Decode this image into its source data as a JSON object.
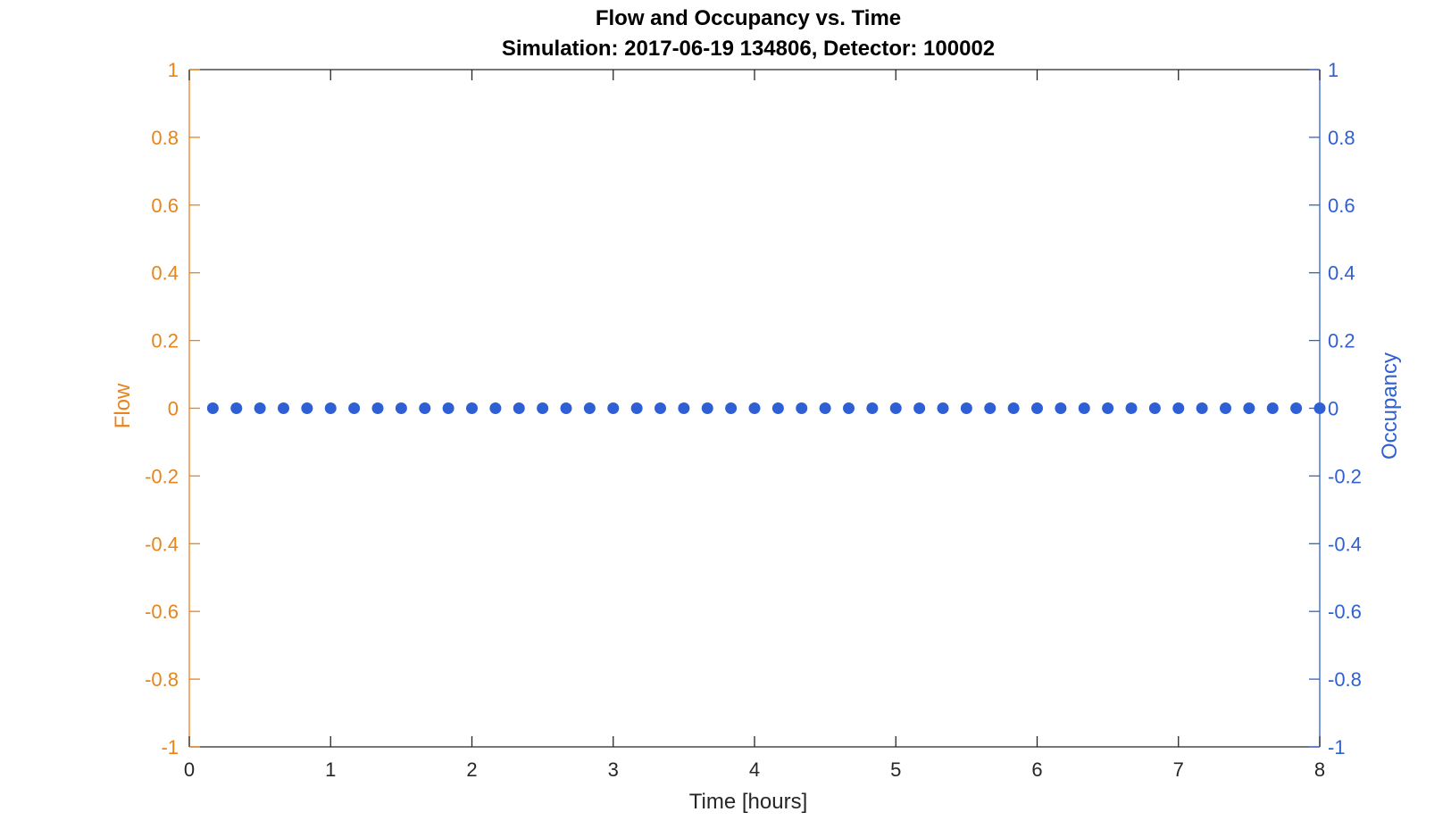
{
  "chart_data": {
    "type": "scatter",
    "title": "Flow and Occupancy vs. Time",
    "subtitle": "Simulation:  2017-06-19 134806,  Detector:  100002",
    "xlabel": "Time [hours]",
    "ylabel_left": "Flow",
    "ylabel_right": "Occupancy",
    "xlim": [
      0,
      8
    ],
    "ylim_left": [
      -1,
      1
    ],
    "ylim_right": [
      -1,
      1
    ],
    "x_ticks": [
      "0",
      "1",
      "2",
      "3",
      "4",
      "5",
      "6",
      "7",
      "8"
    ],
    "y_ticks_left": [
      "1",
      "0.8",
      "0.6",
      "0.4",
      "0.2",
      "0",
      "-0.2",
      "-0.4",
      "-0.6",
      "-0.8",
      "-1"
    ],
    "y_ticks_right": [
      "1",
      "0.8",
      "0.6",
      "0.4",
      "0.2",
      "0",
      "-0.2",
      "-0.4",
      "-0.6",
      "-0.8",
      "-1"
    ],
    "grid": false,
    "legend": "none",
    "colors": {
      "flow_axis": "#E8841A",
      "occupancy_axis": "#3060D0",
      "occupancy_points": "#2E5FD4",
      "frame": "#262626"
    },
    "series": [
      {
        "name": "Occupancy",
        "axis": "right",
        "x": [
          0.1667,
          0.3333,
          0.5,
          0.6667,
          0.8333,
          1.0,
          1.1667,
          1.3333,
          1.5,
          1.6667,
          1.8333,
          2.0,
          2.1667,
          2.3333,
          2.5,
          2.6667,
          2.8333,
          3.0,
          3.1667,
          3.3333,
          3.5,
          3.6667,
          3.8333,
          4.0,
          4.1667,
          4.3333,
          4.5,
          4.6667,
          4.8333,
          5.0,
          5.1667,
          5.3333,
          5.5,
          5.6667,
          5.8333,
          6.0,
          6.1667,
          6.3333,
          6.5,
          6.6667,
          6.8333,
          7.0,
          7.1667,
          7.3333,
          7.5,
          7.6667,
          7.8333,
          8.0
        ],
        "y": [
          0,
          0,
          0,
          0,
          0,
          0,
          0,
          0,
          0,
          0,
          0,
          0,
          0,
          0,
          0,
          0,
          0,
          0,
          0,
          0,
          0,
          0,
          0,
          0,
          0,
          0,
          0,
          0,
          0,
          0,
          0,
          0,
          0,
          0,
          0,
          0,
          0,
          0,
          0,
          0,
          0,
          0,
          0,
          0,
          0,
          0,
          0,
          0
        ]
      }
    ]
  }
}
